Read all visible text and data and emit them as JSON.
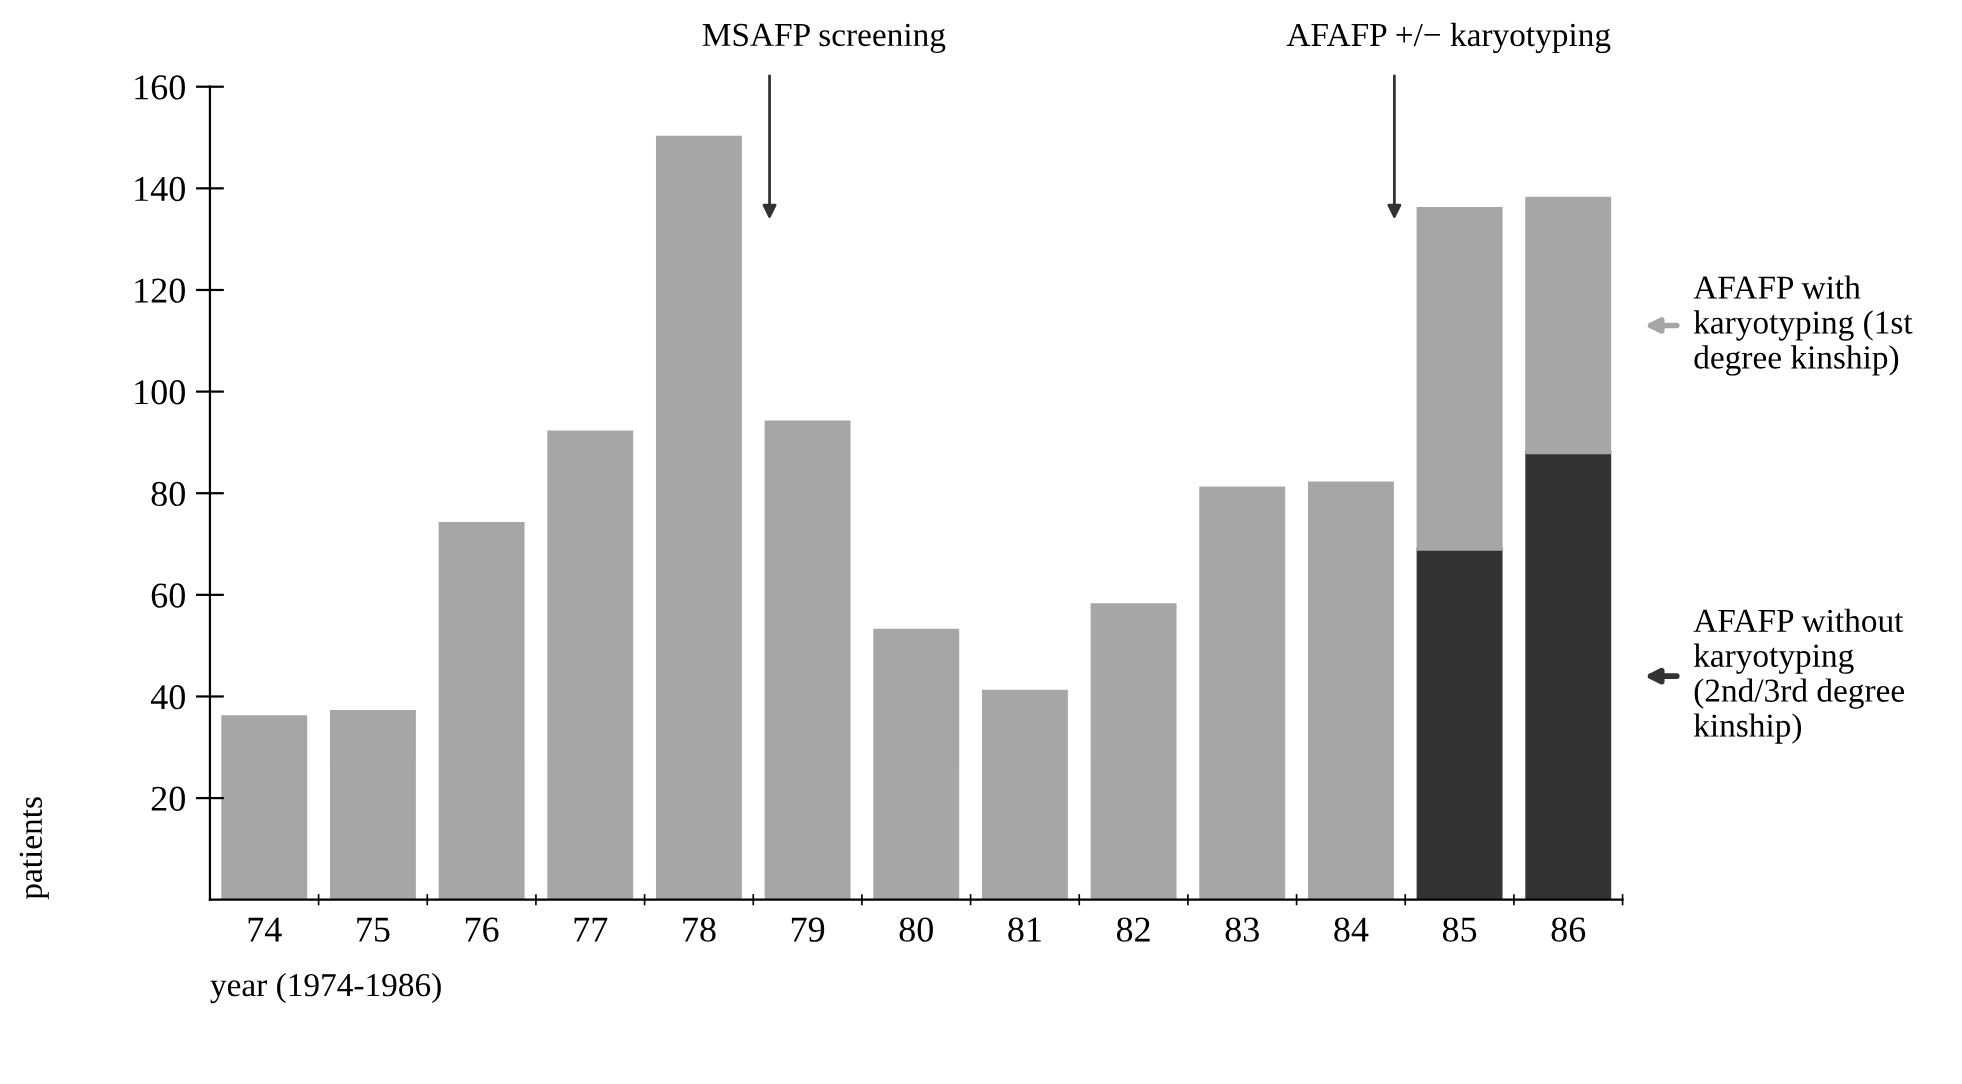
{
  "chart_data": {
    "type": "bar",
    "stacked": true,
    "ylabel": "patients",
    "xlabel": "year (1974-1986)",
    "categories": [
      "74",
      "75",
      "76",
      "77",
      "78",
      "79",
      "80",
      "81",
      "82",
      "83",
      "84",
      "85",
      "86"
    ],
    "series": [
      {
        "color": "#a6a6a6",
        "values": [
          36,
          37,
          74,
          92,
          150,
          94,
          53,
          41,
          58,
          81,
          82,
          null,
          null
        ]
      },
      {
        "name": "AFAFP without karyotyping (2nd/3rd degree kinship)",
        "color": "#333333",
        "values": [
          null,
          null,
          null,
          null,
          null,
          null,
          null,
          null,
          null,
          null,
          null,
          69,
          88
        ]
      },
      {
        "name": "AFAFP with karyotyping (1st degree kinship)",
        "color": "#a6a6a6",
        "values": [
          null,
          null,
          null,
          null,
          null,
          null,
          null,
          null,
          null,
          null,
          null,
          67,
          50
        ]
      }
    ],
    "ylim": [
      0,
      160
    ],
    "yticks": [
      20,
      40,
      60,
      80,
      100,
      120,
      140,
      160
    ],
    "grid": false,
    "legend": "right",
    "annotations": [
      "MSAFP screening",
      "AFAFP +/− karyotyping"
    ]
  }
}
